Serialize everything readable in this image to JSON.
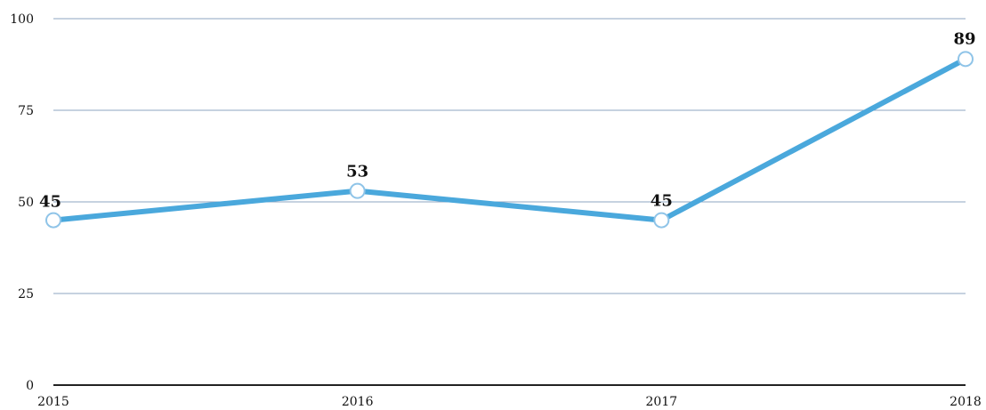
{
  "chart_data": {
    "type": "line",
    "categories": [
      "2015",
      "2016",
      "2017",
      "2018"
    ],
    "series": [
      {
        "values": [
          45,
          53,
          45,
          89
        ]
      }
    ],
    "data_labels": [
      "45",
      "53",
      "45",
      "89"
    ],
    "yticks": [
      "0",
      "25",
      "50",
      "75",
      "100"
    ],
    "ylim": [
      0,
      100
    ],
    "grid": true,
    "line_color": "#4aa8dc",
    "marker_fill": "#ffffff",
    "marker_stroke": "#8fc4e8"
  }
}
